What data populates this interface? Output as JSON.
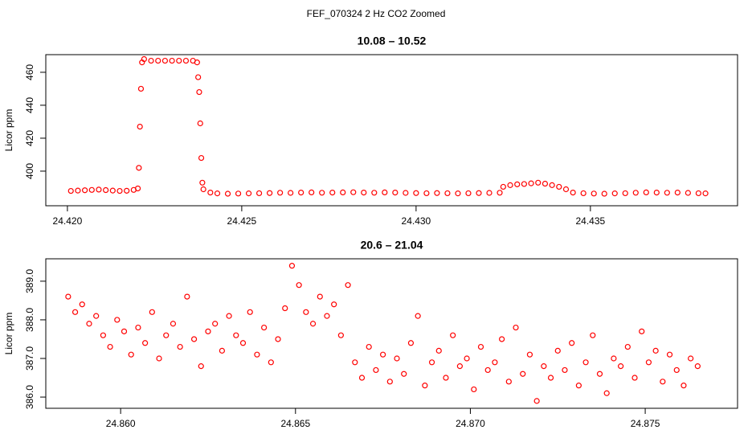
{
  "title": "FEF_070324  2 Hz CO2 Zoomed",
  "chart_data": [
    {
      "type": "scatter",
      "title": "10.08 – 10.52",
      "ylabel": "Licor ppm",
      "x": [
        24.4201,
        24.4203,
        24.4205,
        24.4207,
        24.4209,
        24.4211,
        24.4213,
        24.4215,
        24.4217,
        24.4219,
        24.42202,
        24.42205,
        24.42208,
        24.42211,
        24.42214,
        24.4222,
        24.4224,
        24.4226,
        24.4228,
        24.423,
        24.4232,
        24.4234,
        24.4236,
        24.42372,
        24.42375,
        24.42378,
        24.42381,
        24.42384,
        24.42387,
        24.4239,
        24.4241,
        24.4243,
        24.4246,
        24.4249,
        24.4252,
        24.4255,
        24.4258,
        24.4261,
        24.4264,
        24.4267,
        24.427,
        24.4273,
        24.4276,
        24.4279,
        24.4282,
        24.4285,
        24.4288,
        24.4291,
        24.4294,
        24.4297,
        24.43,
        24.4303,
        24.4306,
        24.4309,
        24.4312,
        24.4315,
        24.4318,
        24.4321,
        24.4324,
        24.4325,
        24.4327,
        24.4329,
        24.4331,
        24.4333,
        24.4335,
        24.4337,
        24.4339,
        24.4341,
        24.4343,
        24.4345,
        24.4348,
        24.4351,
        24.4354,
        24.4357,
        24.436,
        24.4363,
        24.4366,
        24.4369,
        24.4372,
        24.4375,
        24.4378,
        24.4381,
        24.4383
      ],
      "series": [
        {
          "color": "#ff0000",
          "values": [
            388.0,
            388.2,
            388.4,
            388.6,
            388.8,
            388.5,
            388.2,
            388.0,
            388.1,
            388.6,
            389.5,
            402,
            427,
            450,
            466,
            468,
            467,
            467,
            467,
            467,
            467,
            467,
            467,
            466,
            457,
            448,
            429,
            408,
            393,
            389,
            387,
            386.5,
            386.3,
            386.4,
            386.5,
            386.6,
            386.7,
            386.9,
            386.8,
            387.0,
            387.1,
            386.9,
            387.0,
            387.1,
            387.2,
            387.0,
            386.9,
            387.1,
            387.0,
            386.8,
            386.7,
            386.6,
            386.7,
            386.6,
            386.5,
            386.6,
            386.7,
            386.8,
            386.9,
            390.5,
            391.5,
            392.0,
            392.2,
            392.6,
            393.0,
            392.4,
            391.5,
            390.5,
            389.0,
            387.0,
            386.6,
            386.4,
            386.3,
            386.5,
            386.6,
            386.9,
            387.1,
            387.0,
            386.9,
            387.0,
            386.8,
            386.6,
            386.5
          ]
        }
      ],
      "xlim": [
        24.41938,
        24.43922
      ],
      "ylim": [
        379.0,
        470.7
      ],
      "xticks": [
        {
          "value": 24.42,
          "label": "24.420"
        },
        24.425,
        {
          "value": 24.43,
          "label": "24.430"
        },
        24.435
      ],
      "yticks": [
        400,
        420,
        440,
        460
      ]
    },
    {
      "type": "scatter",
      "title": "20.6 – 21.04",
      "ylabel": "Licor ppm",
      "x": [
        24.8585,
        24.8587,
        24.8589,
        24.8591,
        24.8593,
        24.8595,
        24.8597,
        24.8599,
        24.8601,
        24.8603,
        24.8605,
        24.8607,
        24.8609,
        24.8611,
        24.8613,
        24.8615,
        24.8617,
        24.8619,
        24.8621,
        24.8623,
        24.8625,
        24.8627,
        24.8629,
        24.8631,
        24.8633,
        24.8635,
        24.8637,
        24.8639,
        24.8641,
        24.8643,
        24.8645,
        24.8647,
        24.8649,
        24.8651,
        24.8653,
        24.8655,
        24.8657,
        24.8659,
        24.8661,
        24.8663,
        24.8665,
        24.8667,
        24.8669,
        24.8671,
        24.8673,
        24.8675,
        24.8677,
        24.8679,
        24.8681,
        24.8683,
        24.8685,
        24.8687,
        24.8689,
        24.8691,
        24.8693,
        24.8695,
        24.8697,
        24.8699,
        24.8701,
        24.8703,
        24.8705,
        24.8707,
        24.8709,
        24.8711,
        24.8713,
        24.8715,
        24.8717,
        24.8719,
        24.8721,
        24.8723,
        24.8725,
        24.8727,
        24.8729,
        24.8731,
        24.8733,
        24.8735,
        24.8737,
        24.8739,
        24.8741,
        24.8743,
        24.8745,
        24.8747,
        24.8749,
        24.8751,
        24.8753,
        24.8755,
        24.8757,
        24.8759,
        24.8761,
        24.8763,
        24.8765
      ],
      "series": [
        {
          "color": "#ff0000",
          "values": [
            388.6,
            388.2,
            388.4,
            387.9,
            388.1,
            387.6,
            387.3,
            388.0,
            387.7,
            387.1,
            387.8,
            387.4,
            388.2,
            387.0,
            387.6,
            387.9,
            387.3,
            388.6,
            387.5,
            386.8,
            387.7,
            387.9,
            387.2,
            388.1,
            387.6,
            387.4,
            388.2,
            387.1,
            387.8,
            386.9,
            387.5,
            388.3,
            389.4,
            388.9,
            388.2,
            387.9,
            388.6,
            388.1,
            388.4,
            387.6,
            388.9,
            386.9,
            386.5,
            387.3,
            386.7,
            387.1,
            386.4,
            387.0,
            386.6,
            387.4,
            388.1,
            386.3,
            386.9,
            387.2,
            386.5,
            387.6,
            386.8,
            387.0,
            386.2,
            387.3,
            386.7,
            386.9,
            387.5,
            386.4,
            387.8,
            386.6,
            387.1,
            385.9,
            386.8,
            386.5,
            387.2,
            386.7,
            387.4,
            386.3,
            386.9,
            387.6,
            386.6,
            386.1,
            387.0,
            386.8,
            387.3,
            386.5,
            387.7,
            386.9,
            387.2,
            386.4,
            387.1,
            386.7,
            386.3,
            387.0,
            386.8
          ]
        }
      ],
      "xlim": [
        24.85786,
        24.87764
      ],
      "ylim": [
        385.71,
        389.58
      ],
      "xticks": [
        {
          "value": 24.86,
          "label": "24.860"
        },
        24.865,
        {
          "value": 24.87,
          "label": "24.870"
        },
        24.875
      ],
      "yticks": [
        {
          "value": 386,
          "label": "386.0"
        },
        {
          "value": 387,
          "label": "387.0"
        },
        {
          "value": 388,
          "label": "388.0"
        },
        {
          "value": 389,
          "label": "389.0"
        }
      ]
    }
  ]
}
